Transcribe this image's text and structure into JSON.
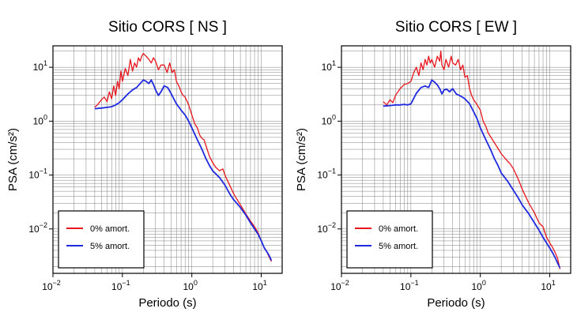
{
  "chart_data": [
    {
      "type": "line",
      "title": "Sitio CORS [ NS ]",
      "xlabel": "Periodo (s)",
      "ylabel": "PSA (cm/s²)",
      "xscale": "log",
      "yscale": "log",
      "xlim": [
        0.01,
        20
      ],
      "ylim": [
        0.0015,
        25
      ],
      "grid": true,
      "legend_position": "bottom-left",
      "x_ticks": [
        {
          "value": 0.01,
          "base": "10",
          "exp": "−2"
        },
        {
          "value": 0.1,
          "base": "10",
          "exp": "−1"
        },
        {
          "value": 1,
          "base": "10",
          "exp": "0"
        },
        {
          "value": 10,
          "base": "10",
          "exp": "1"
        }
      ],
      "y_ticks": [
        {
          "value": 0.01,
          "base": "10",
          "exp": "−2"
        },
        {
          "value": 0.1,
          "base": "10",
          "exp": "−1"
        },
        {
          "value": 1,
          "base": "10",
          "exp": "0"
        },
        {
          "value": 10,
          "base": "10",
          "exp": "1"
        }
      ],
      "series": [
        {
          "name": "0% amort.",
          "color": "#e8161d",
          "x": [
            0.04,
            0.045,
            0.05,
            0.055,
            0.06,
            0.065,
            0.07,
            0.075,
            0.08,
            0.085,
            0.09,
            0.095,
            0.1,
            0.11,
            0.12,
            0.13,
            0.14,
            0.15,
            0.16,
            0.17,
            0.18,
            0.19,
            0.2,
            0.22,
            0.24,
            0.26,
            0.28,
            0.3,
            0.33,
            0.36,
            0.4,
            0.44,
            0.48,
            0.52,
            0.56,
            0.6,
            0.65,
            0.7,
            0.75,
            0.8,
            0.9,
            1.0,
            1.1,
            1.2,
            1.3,
            1.4,
            1.5,
            1.6,
            1.8,
            2.0,
            2.2,
            2.5,
            2.8,
            3.0,
            3.5,
            4.0,
            4.5,
            5.0,
            6.0,
            7.0,
            8.0,
            9.0,
            10.0,
            11.0,
            12.0,
            13.0,
            14.0
          ],
          "y": [
            1.8,
            2.1,
            2.5,
            2.8,
            2.3,
            3.5,
            2.6,
            4.5,
            3.0,
            5.5,
            4.0,
            8.5,
            5.5,
            9.5,
            7.0,
            14,
            8.5,
            12,
            10,
            15,
            13,
            16,
            18,
            16,
            14,
            12,
            15,
            13,
            9,
            11,
            11,
            8,
            12,
            8,
            9,
            5.5,
            4.5,
            3.5,
            3.0,
            2.8,
            2.0,
            1.3,
            0.9,
            0.75,
            0.55,
            0.48,
            0.45,
            0.35,
            0.22,
            0.17,
            0.14,
            0.12,
            0.13,
            0.1,
            0.065,
            0.045,
            0.035,
            0.028,
            0.019,
            0.014,
            0.011,
            0.0085,
            0.006,
            0.0045,
            0.0038,
            0.003,
            0.0025
          ]
        },
        {
          "name": "5% amort.",
          "color": "#1f2ae0",
          "x": [
            0.04,
            0.05,
            0.06,
            0.07,
            0.08,
            0.09,
            0.1,
            0.12,
            0.14,
            0.16,
            0.18,
            0.2,
            0.22,
            0.24,
            0.26,
            0.28,
            0.3,
            0.33,
            0.36,
            0.4,
            0.45,
            0.5,
            0.55,
            0.6,
            0.7,
            0.8,
            0.9,
            1.0,
            1.2,
            1.4,
            1.6,
            1.8,
            2.0,
            2.5,
            3.0,
            3.5,
            4.0,
            5.0,
            6.0,
            7.0,
            8.0,
            9.0,
            10.0,
            11.0,
            12.0,
            13.0,
            14.0
          ],
          "y": [
            1.7,
            1.75,
            1.8,
            1.85,
            2.0,
            2.2,
            2.5,
            3.2,
            3.8,
            4.2,
            5.0,
            5.8,
            5.5,
            5.0,
            5.8,
            4.8,
            3.8,
            3.0,
            3.5,
            4.5,
            4.2,
            3.3,
            2.6,
            2.1,
            1.6,
            1.3,
            1.0,
            0.75,
            0.45,
            0.3,
            0.2,
            0.15,
            0.12,
            0.09,
            0.065,
            0.045,
            0.035,
            0.025,
            0.018,
            0.013,
            0.01,
            0.008,
            0.006,
            0.0045,
            0.0038,
            0.0032,
            0.0026
          ]
        }
      ]
    },
    {
      "type": "line",
      "title": "Sitio CORS [ EW ]",
      "xlabel": "Periodo (s)",
      "ylabel": "PSA (cm/s²)",
      "xscale": "log",
      "yscale": "log",
      "xlim": [
        0.01,
        20
      ],
      "ylim": [
        0.0015,
        25
      ],
      "grid": true,
      "legend_position": "bottom-left",
      "x_ticks": [
        {
          "value": 0.01,
          "base": "10",
          "exp": "−2"
        },
        {
          "value": 0.1,
          "base": "10",
          "exp": "−1"
        },
        {
          "value": 1,
          "base": "10",
          "exp": "0"
        },
        {
          "value": 10,
          "base": "10",
          "exp": "1"
        }
      ],
      "y_ticks": [
        {
          "value": 0.01,
          "base": "10",
          "exp": "−2"
        },
        {
          "value": 0.1,
          "base": "10",
          "exp": "−1"
        },
        {
          "value": 1,
          "base": "10",
          "exp": "0"
        },
        {
          "value": 10,
          "base": "10",
          "exp": "1"
        }
      ],
      "series": [
        {
          "name": "0% amort.",
          "color": "#e8161d",
          "x": [
            0.04,
            0.045,
            0.05,
            0.055,
            0.06,
            0.065,
            0.07,
            0.08,
            0.09,
            0.1,
            0.11,
            0.12,
            0.13,
            0.14,
            0.15,
            0.16,
            0.17,
            0.18,
            0.19,
            0.2,
            0.22,
            0.24,
            0.26,
            0.27,
            0.28,
            0.3,
            0.32,
            0.35,
            0.38,
            0.4,
            0.44,
            0.48,
            0.52,
            0.56,
            0.6,
            0.65,
            0.7,
            0.75,
            0.8,
            0.9,
            1.0,
            1.1,
            1.2,
            1.3,
            1.5,
            1.7,
            2.0,
            2.3,
            2.7,
            3.0,
            3.5,
            4.0,
            5.0,
            6.0,
            7.0,
            8.0,
            9.0,
            10.0,
            11.0,
            12.0,
            13.0,
            14.0
          ],
          "y": [
            2.3,
            2.0,
            2.5,
            2.2,
            3.0,
            3.5,
            4.0,
            4.8,
            5.0,
            5.5,
            8.0,
            10,
            7.0,
            12,
            9.0,
            14,
            11,
            16,
            12,
            14,
            10,
            16,
            13,
            20,
            11,
            9.0,
            14,
            10,
            16,
            12,
            11,
            14,
            9.0,
            11,
            6.5,
            7.0,
            4.0,
            3.0,
            2.5,
            2.0,
            1.6,
            1.0,
            0.8,
            0.6,
            0.45,
            0.35,
            0.25,
            0.2,
            0.16,
            0.13,
            0.085,
            0.055,
            0.03,
            0.02,
            0.013,
            0.011,
            0.007,
            0.0055,
            0.0045,
            0.0036,
            0.0028,
            0.0018
          ]
        },
        {
          "name": "5% amort.",
          "color": "#1f2ae0",
          "x": [
            0.04,
            0.05,
            0.06,
            0.07,
            0.08,
            0.09,
            0.1,
            0.12,
            0.14,
            0.16,
            0.18,
            0.2,
            0.22,
            0.24,
            0.26,
            0.28,
            0.3,
            0.33,
            0.36,
            0.4,
            0.45,
            0.5,
            0.55,
            0.6,
            0.7,
            0.8,
            0.9,
            1.0,
            1.2,
            1.4,
            1.6,
            1.8,
            2.0,
            2.5,
            3.0,
            3.5,
            4.0,
            5.0,
            6.0,
            7.0,
            8.0,
            9.0,
            10.0,
            11.0,
            12.0,
            13.0,
            14.0
          ],
          "y": [
            1.9,
            1.95,
            2.0,
            2.0,
            2.05,
            2.0,
            2.1,
            3.3,
            4.2,
            4.5,
            4.2,
            5.8,
            5.3,
            4.7,
            4.0,
            3.2,
            3.8,
            3.9,
            3.5,
            4.0,
            3.2,
            3.0,
            2.8,
            2.6,
            2.1,
            1.5,
            1.1,
            0.75,
            0.45,
            0.3,
            0.2,
            0.15,
            0.11,
            0.075,
            0.052,
            0.038,
            0.028,
            0.019,
            0.013,
            0.0095,
            0.007,
            0.0055,
            0.0044,
            0.0036,
            0.0029,
            0.0023,
            0.0019
          ]
        }
      ]
    }
  ]
}
